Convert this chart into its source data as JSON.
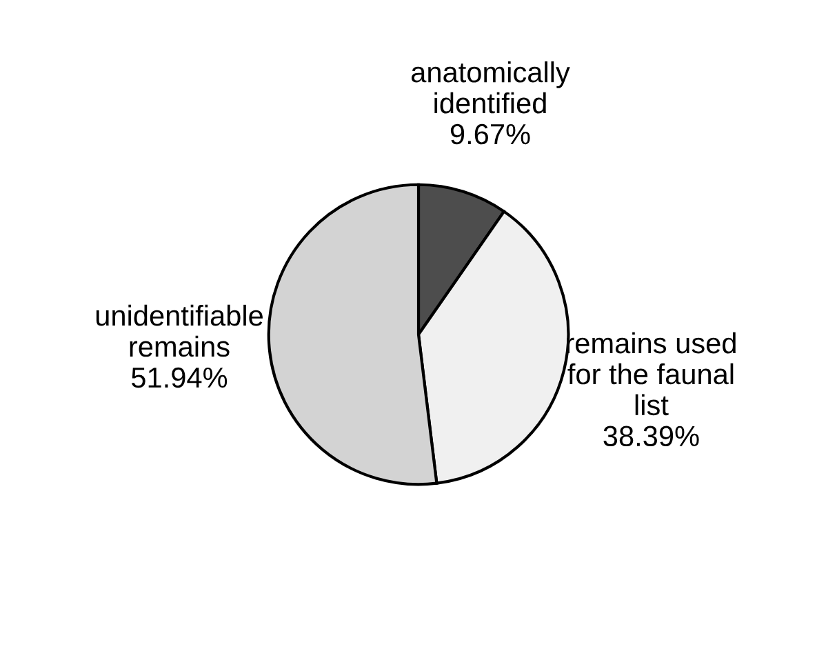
{
  "chart_data": {
    "type": "pie",
    "categories": [
      "anatomically\nidentified",
      "remains used\nfor the faunal\nlist",
      "unidentifiable\nremains"
    ],
    "values": [
      9.67,
      38.39,
      51.94
    ],
    "value_labels": [
      "9.67%",
      "38.39%",
      "51.94%"
    ],
    "colors": [
      "#4d4d4d",
      "#f0f0f0",
      "#d3d3d3"
    ]
  }
}
